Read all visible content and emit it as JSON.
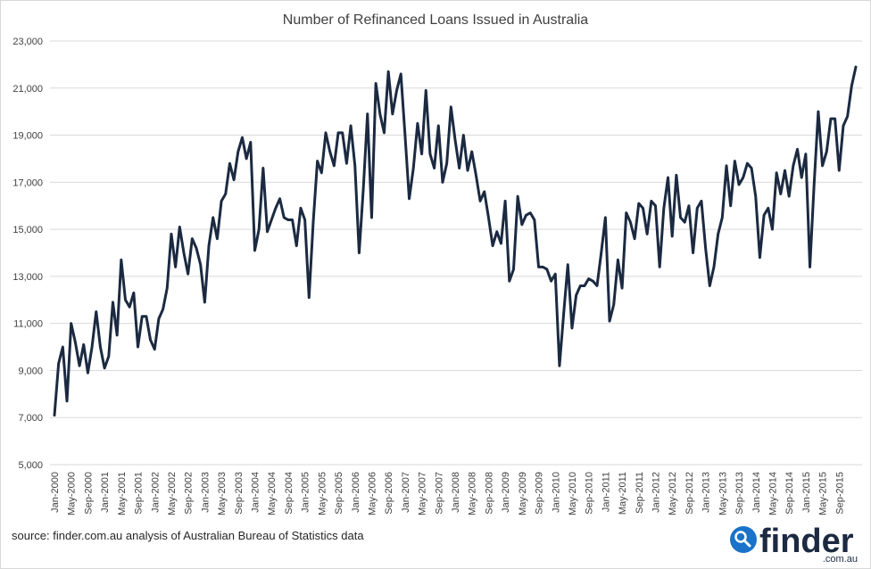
{
  "colors": {
    "series": "#1b2a41",
    "grid": "#d9d9d9",
    "text": "#404040",
    "brand": "#1a73c8"
  },
  "source_text": "source: finder.com.au analysis of Australian Bureau of Statistics data",
  "logo": {
    "word": "finder",
    "sub": ".com.au",
    "icon": "magnifier-icon"
  },
  "chart_data": {
    "type": "line",
    "title": "Number of Refinanced Loans Issued in Australia",
    "xlabel": "",
    "ylabel": "",
    "ylim": [
      5000,
      23000
    ],
    "grid": true,
    "legend": "none",
    "y_ticks": [
      "5,000",
      "7,000",
      "9,000",
      "11,000",
      "13,000",
      "15,000",
      "17,000",
      "19,000",
      "21,000",
      "23,000"
    ],
    "x_tick_labels": [
      "Jan-2000",
      "May-2000",
      "Sep-2000",
      "Jan-2001",
      "May-2001",
      "Sep-2001",
      "Jan-2002",
      "May-2002",
      "Sep-2002",
      "Jan-2003",
      "May-2003",
      "Sep-2003",
      "Jan-2004",
      "May-2004",
      "Sep-2004",
      "Jan-2005",
      "May-2005",
      "Sep-2005",
      "Jan-2006",
      "May-2006",
      "Sep-2006",
      "Jan-2007",
      "May-2007",
      "Sep-2007",
      "Jan-2008",
      "May-2008",
      "Sep-2008",
      "Jan-2009",
      "May-2009",
      "Sep-2009",
      "Jan-2010",
      "May-2010",
      "Sep-2010",
      "Jan-2011",
      "May-2011",
      "Sep-2011",
      "Jan-2012",
      "May-2012",
      "Sep-2012",
      "Jan-2013",
      "May-2013",
      "Sep-2013",
      "Jan-2014",
      "May-2014",
      "Sep-2014",
      "Jan-2015",
      "May-2015",
      "Sep-2015"
    ],
    "start": "Jan-2000",
    "end": "Dec-2015",
    "series": [
      {
        "values": [
          7100,
          9300,
          10000,
          7700,
          11000,
          10200,
          9200,
          10100,
          8900,
          10000,
          11500,
          10000,
          9100,
          9600,
          11900,
          10500,
          13700,
          12000,
          11700,
          12300,
          10000,
          11300,
          11300,
          10300,
          9900,
          11200,
          11600,
          12500,
          14800,
          13400,
          15100,
          14000,
          13100,
          14600,
          14200,
          13500,
          11900,
          14300,
          15500,
          14600,
          16200,
          16500,
          17800,
          17100,
          18300,
          18900,
          18000,
          18700,
          14100,
          15000,
          17600,
          14900,
          15400,
          15900,
          16300,
          15500,
          15400,
          15400,
          14300,
          15900,
          15400,
          12100,
          15300,
          17900,
          17400,
          19100,
          18300,
          17700,
          19100,
          19100,
          17800,
          19400,
          17700,
          14000,
          16700,
          19900,
          15500,
          21200,
          19900,
          19100,
          21700,
          19900,
          20900,
          21600,
          19000,
          16300,
          17600,
          19500,
          18200,
          20900,
          18200,
          17600,
          19400,
          17000,
          17800,
          20200,
          18800,
          17600,
          19000,
          17500,
          18300,
          17300,
          16200,
          16600,
          15500,
          14300,
          14900,
          14400,
          16200,
          12800,
          13300,
          16400,
          15200,
          15600,
          15700,
          15400,
          13400,
          13400,
          13300,
          12800,
          13100,
          9200,
          11400,
          13500,
          10800,
          12200,
          12600,
          12600,
          12900,
          12800,
          12600,
          14000,
          15500,
          11100,
          11800,
          13700,
          12500,
          15700,
          15300,
          14600,
          16100,
          15900,
          14800,
          16200,
          16000,
          13400,
          15900,
          17200,
          14700,
          17300,
          15500,
          15300,
          16000,
          14000,
          15900,
          16200,
          14200,
          12600,
          13400,
          14800,
          15500,
          17700,
          16000,
          17900,
          16900,
          17200,
          17800,
          17600,
          16400,
          13800,
          15600,
          15900,
          15000,
          17400,
          16500,
          17500,
          16400,
          17700,
          18400,
          17200,
          18200,
          13400,
          16900,
          20000,
          17700,
          18300,
          19700,
          19700,
          17500,
          19400,
          19800,
          21100,
          21900
        ]
      }
    ]
  }
}
